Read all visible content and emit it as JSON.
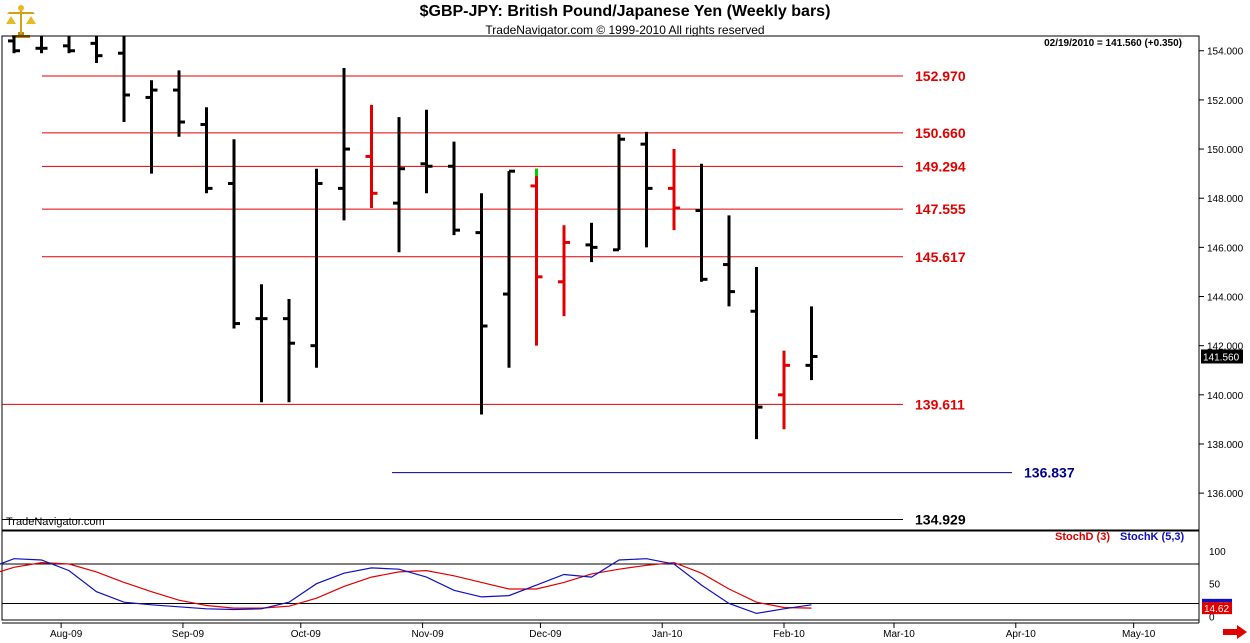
{
  "header": {
    "title": "$GBP-JPY:  British Pound/Japanese Yen  (Weekly bars)",
    "subtitle": "TradeNavigator.com © 1999-2010 All rights reserved",
    "quote": "02/19/2010 = 141.560 (+0.350)",
    "watermark": "TradeNavigator.com"
  },
  "colors": {
    "up": "#000000",
    "down": "#e00000",
    "level": "#e00000",
    "support2": "#00008b",
    "stochD": "#e00000",
    "stochK": "#1010c0",
    "accent_green": "#00cc00"
  },
  "icons": {
    "logo": "gold-balance-scale-icon",
    "nav": "red-right-arrow-icon"
  },
  "chart_data": [
    {
      "type": "ohlc",
      "title": "$GBP-JPY:  British Pound/Japanese Yen  (Weekly bars)",
      "ylim": [
        134.5,
        154.6
      ],
      "yticks": [
        "154.000",
        "152.000",
        "150.000",
        "148.000",
        "146.000",
        "144.000",
        "142.000",
        "140.000",
        "138.000",
        "136.000"
      ],
      "xticks": [
        "Aug-09",
        "Sep-09",
        "Oct-09",
        "Nov-09",
        "Dec-09",
        "Jan-10",
        "Feb-10",
        "Mar-10",
        "Apr-10",
        "May-10"
      ],
      "last_price": "141.560",
      "levels": [
        {
          "value": 152.97,
          "label": "152.970",
          "color": "#e00000"
        },
        {
          "value": 150.66,
          "label": "150.660",
          "color": "#e00000"
        },
        {
          "value": 149.294,
          "label": "149.294",
          "color": "#e00000"
        },
        {
          "value": 147.555,
          "label": "147.555",
          "color": "#e00000"
        },
        {
          "value": 145.617,
          "label": "145.617",
          "color": "#e00000"
        },
        {
          "value": 139.611,
          "label": "139.611",
          "color": "#e00000"
        },
        {
          "value": 136.837,
          "label": "136.837",
          "color": "#00008b"
        },
        {
          "value": 134.929,
          "label": "134.929",
          "color": "#000000"
        }
      ],
      "bars": [
        {
          "date": "2009-07-20",
          "open": 154.4,
          "high": 154.6,
          "low": 153.9,
          "close": 154.0,
          "color": "black"
        },
        {
          "date": "2009-07-27",
          "open": 154.1,
          "high": 154.6,
          "low": 153.9,
          "close": 154.1,
          "color": "black"
        },
        {
          "date": "2009-08-03",
          "open": 154.2,
          "high": 154.6,
          "low": 153.9,
          "close": 154.0,
          "color": "black"
        },
        {
          "date": "2009-08-10",
          "open": 154.3,
          "high": 154.6,
          "low": 153.5,
          "close": 153.8,
          "color": "black"
        },
        {
          "date": "2009-08-17",
          "open": 153.9,
          "high": 154.6,
          "low": 151.1,
          "close": 152.2,
          "color": "black"
        },
        {
          "date": "2009-08-24",
          "open": 152.1,
          "high": 152.8,
          "low": 149.0,
          "close": 152.4,
          "color": "black"
        },
        {
          "date": "2009-08-31",
          "open": 152.4,
          "high": 153.2,
          "low": 150.5,
          "close": 151.1,
          "color": "black"
        },
        {
          "date": "2009-09-07",
          "open": 151.0,
          "high": 151.7,
          "low": 148.2,
          "close": 148.4,
          "color": "black"
        },
        {
          "date": "2009-09-14",
          "open": 148.6,
          "high": 150.4,
          "low": 142.7,
          "close": 142.9,
          "color": "black"
        },
        {
          "date": "2009-09-21",
          "open": 143.1,
          "high": 144.5,
          "low": 139.7,
          "close": 143.1,
          "color": "black"
        },
        {
          "date": "2009-09-28",
          "open": 143.1,
          "high": 143.9,
          "low": 139.7,
          "close": 142.1,
          "color": "black"
        },
        {
          "date": "2009-10-05",
          "open": 142.0,
          "high": 149.2,
          "low": 141.1,
          "close": 148.6,
          "color": "black"
        },
        {
          "date": "2009-10-12",
          "open": 148.4,
          "high": 153.3,
          "low": 147.1,
          "close": 150.0,
          "color": "black"
        },
        {
          "date": "2009-10-19",
          "open": 149.7,
          "high": 151.8,
          "low": 147.6,
          "close": 148.2,
          "color": "red"
        },
        {
          "date": "2009-10-26",
          "open": 147.8,
          "high": 151.3,
          "low": 145.8,
          "close": 149.2,
          "color": "black"
        },
        {
          "date": "2009-11-02",
          "open": 149.4,
          "high": 151.6,
          "low": 148.2,
          "close": 149.3,
          "color": "black"
        },
        {
          "date": "2009-11-09",
          "open": 149.3,
          "high": 150.3,
          "low": 146.5,
          "close": 146.7,
          "color": "black"
        },
        {
          "date": "2009-11-16",
          "open": 146.6,
          "high": 148.2,
          "low": 139.2,
          "close": 142.8,
          "color": "black"
        },
        {
          "date": "2009-11-23",
          "open": 144.1,
          "high": 149.1,
          "low": 141.1,
          "close": 149.1,
          "color": "black"
        },
        {
          "date": "2009-11-30",
          "open": 148.5,
          "high": 149.2,
          "low": 142.0,
          "close": 144.8,
          "color": "red"
        },
        {
          "date": "2009-12-07",
          "open": 144.6,
          "high": 146.9,
          "low": 143.2,
          "close": 146.2,
          "color": "red"
        },
        {
          "date": "2009-12-14",
          "open": 146.1,
          "high": 147.0,
          "low": 145.4,
          "close": 146.0,
          "color": "black"
        },
        {
          "date": "2009-12-21",
          "open": 145.9,
          "high": 150.6,
          "low": 145.9,
          "close": 150.4,
          "color": "black"
        },
        {
          "date": "2009-12-28",
          "open": 150.2,
          "high": 150.7,
          "low": 146.0,
          "close": 148.4,
          "color": "black"
        },
        {
          "date": "2010-01-04",
          "open": 148.4,
          "high": 150.0,
          "low": 146.7,
          "close": 147.6,
          "color": "red"
        },
        {
          "date": "2010-01-11",
          "open": 147.5,
          "high": 149.4,
          "low": 144.6,
          "close": 144.7,
          "color": "black"
        },
        {
          "date": "2010-01-18",
          "open": 145.3,
          "high": 147.3,
          "low": 143.6,
          "close": 144.2,
          "color": "black"
        },
        {
          "date": "2010-01-25",
          "open": 143.4,
          "high": 145.2,
          "low": 138.2,
          "close": 139.5,
          "color": "black"
        },
        {
          "date": "2010-02-01",
          "open": 140.0,
          "high": 141.8,
          "low": 138.6,
          "close": 141.2,
          "color": "red"
        },
        {
          "date": "2010-02-08",
          "open": 141.2,
          "high": 143.6,
          "low": 140.6,
          "close": 141.56,
          "color": "black"
        }
      ]
    },
    {
      "type": "line",
      "title": "",
      "ylim": [
        -5,
        130
      ],
      "yticks": [
        "100",
        "50",
        "0"
      ],
      "series": [
        {
          "name": "StochD (3)",
          "color": "#e00000",
          "values": [
            62,
            75,
            82,
            80,
            68,
            52,
            38,
            25,
            17,
            13,
            13,
            16,
            28,
            46,
            60,
            68,
            70,
            62,
            52,
            42,
            42,
            52,
            65,
            72,
            78,
            82,
            66,
            42,
            22,
            14,
            13
          ]
        },
        {
          "name": "StochK (5,3)",
          "color": "#1010c0",
          "values": [
            72,
            88,
            86,
            70,
            38,
            22,
            18,
            15,
            12,
            11,
            12,
            22,
            50,
            66,
            74,
            72,
            60,
            40,
            30,
            32,
            48,
            64,
            60,
            86,
            88,
            80,
            48,
            20,
            5,
            12,
            18
          ]
        },
        {
          "name": "overbought",
          "color": "#000000",
          "values": [
            80
          ]
        },
        {
          "name": "oversold",
          "color": "#000000",
          "values": [
            20
          ]
        }
      ],
      "last_values": [
        "24.77",
        "14.62"
      ]
    }
  ]
}
